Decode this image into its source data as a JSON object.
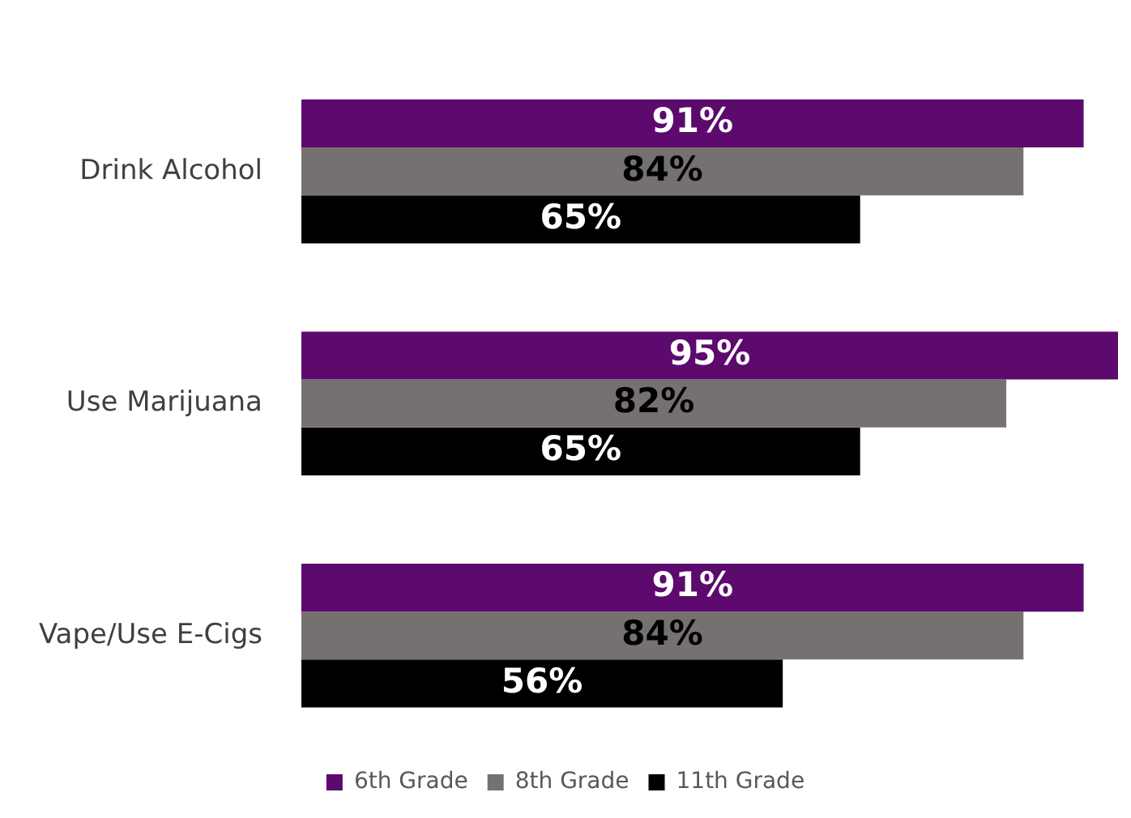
{
  "chart_data": {
    "type": "bar",
    "orientation": "horizontal",
    "categories": [
      "Drink Alcohol",
      "Use Marijuana",
      "Vape/Use E-Cigs"
    ],
    "series": [
      {
        "name": "6th Grade",
        "color": "#5c0a6e",
        "values": [
          91,
          95,
          91
        ],
        "value_labels": [
          "91%",
          "95%",
          "91%"
        ]
      },
      {
        "name": "8th Grade",
        "color": "#767171",
        "values": [
          84,
          82,
          84
        ],
        "value_labels": [
          "84%",
          "82%",
          "84%"
        ]
      },
      {
        "name": "11th Grade",
        "color": "#000000",
        "values": [
          65,
          65,
          56
        ],
        "value_labels": [
          "65%",
          "65%",
          "56%"
        ]
      }
    ],
    "legend": "bottom"
  }
}
